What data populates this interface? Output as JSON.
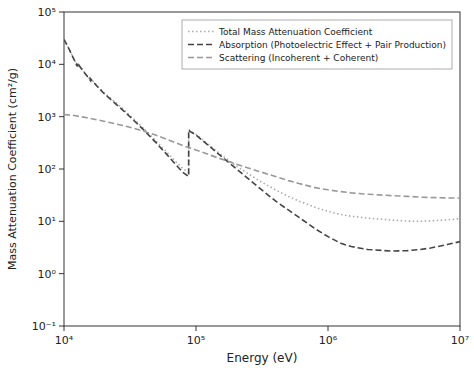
{
  "chart_data": {
    "type": "line",
    "xlabel": "Energy (eV)",
    "ylabel": "Mass Attenuation Coefficient (cm²/g)",
    "log": true,
    "grid": false,
    "legend": "upper-right",
    "xlim": [
      10000,
      10000000
    ],
    "ylim": [
      0.1,
      100000
    ],
    "xticks": [
      {
        "value": 10000,
        "label": "10⁴"
      },
      {
        "value": 100000,
        "label": "10⁵"
      },
      {
        "value": 1000000,
        "label": "10⁶"
      },
      {
        "value": 10000000,
        "label": "10⁷"
      }
    ],
    "yticks": [
      {
        "value": 0.1,
        "label": "10⁻¹"
      },
      {
        "value": 1,
        "label": "10⁰"
      },
      {
        "value": 10,
        "label": "10¹"
      },
      {
        "value": 100,
        "label": "10²"
      },
      {
        "value": 1000,
        "label": "10³"
      },
      {
        "value": 10000,
        "label": "10⁴"
      },
      {
        "value": 100000,
        "label": "10⁵"
      }
    ],
    "series": [
      {
        "name": "Total Mass Attenuation Coefficient",
        "color": "#aaaaaa",
        "line_style": "dotted",
        "x": [
          10000,
          10500,
          11000,
          11500,
          12000,
          12300,
          12610,
          12611,
          13040,
          13041,
          14000,
          15000,
          15860,
          15861,
          18000,
          20000,
          25000,
          30000,
          40000,
          50000,
          60000,
          70000,
          80000,
          87990,
          88005,
          90000,
          100000,
          150000,
          200000,
          300000,
          400000,
          500000,
          600000,
          800000,
          1000000,
          1250000,
          1500000,
          2000000,
          3000000,
          4000000,
          5000000,
          6000000,
          8000000,
          10000000
        ],
        "values": [
          30000,
          24000,
          19000,
          15000,
          12000,
          10500,
          9200,
          9900,
          8800,
          9500,
          7500,
          6000,
          5000,
          5400,
          3800,
          2900,
          1800,
          1200,
          600,
          340,
          210,
          140,
          100,
          87,
          570,
          540,
          460,
          200,
          116,
          60,
          40,
          30,
          24.5,
          18.5,
          15.5,
          13.5,
          12.5,
          11.5,
          10.6,
          10.1,
          10.0,
          10.2,
          10.7,
          11.2
        ]
      },
      {
        "name": "Absorption (Photoelectric Effect + Pair Production)",
        "color": "#444444",
        "line_style": "dashed",
        "x": [
          10000,
          10500,
          11000,
          11500,
          12000,
          12300,
          12610,
          12611,
          13040,
          13041,
          14000,
          15000,
          15860,
          15861,
          18000,
          20000,
          25000,
          30000,
          40000,
          50000,
          60000,
          70000,
          80000,
          87990,
          88005,
          90000,
          100000,
          150000,
          200000,
          300000,
          400000,
          500000,
          600000,
          800000,
          1000000,
          1250000,
          1500000,
          2000000,
          3000000,
          4000000,
          5000000,
          6000000,
          8000000,
          10000000
        ],
        "values": [
          29900,
          23900,
          18900,
          14900,
          11900,
          10400,
          9100,
          9800,
          8700,
          9400,
          7400,
          5900,
          4900,
          5300,
          3700,
          2800,
          1700,
          1130,
          565,
          315,
          190,
          122,
          85,
          72,
          555,
          525,
          446,
          189,
          103,
          44,
          24.5,
          16.5,
          12.0,
          7.2,
          5.1,
          3.8,
          3.3,
          2.9,
          2.7,
          2.75,
          2.9,
          3.1,
          3.6,
          4.1
        ]
      },
      {
        "name": "Scattering (Incoherent + Coherent)",
        "color": "#999999",
        "line_style": "dashed",
        "x": [
          10000,
          12000,
          15000,
          20000,
          30000,
          40000,
          50000,
          60000,
          80000,
          100000,
          150000,
          200000,
          300000,
          400000,
          500000,
          600000,
          800000,
          1000000,
          1250000,
          1500000,
          2000000,
          3000000,
          4000000,
          5000000,
          6000000,
          8000000,
          10000000
        ],
        "values": [
          1100,
          1050,
          950,
          820,
          650,
          530,
          440,
          370,
          280,
          230,
          160,
          125,
          90,
          72,
          60,
          53,
          44,
          40,
          37,
          35,
          33,
          31,
          30,
          29,
          28.5,
          28,
          28
        ]
      }
    ]
  }
}
